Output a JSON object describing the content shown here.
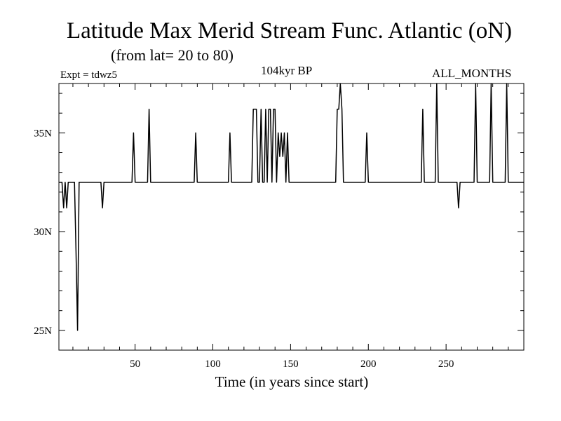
{
  "chart_data": {
    "type": "line",
    "title": "Latitude Max Merid Stream Func. Atlantic (oN)",
    "subtitle": "(from lat= 20 to 80)",
    "experiment_label": "Expt = tdwz5",
    "period_label": "104kyr BP",
    "season_label": "ALL_MONTHS",
    "xlabel": "Time (in years since start)",
    "ylabel": "",
    "xlim": [
      1,
      300
    ],
    "ylim": [
      24,
      37.5
    ],
    "x_ticks": [
      50,
      100,
      150,
      200,
      250
    ],
    "x_tick_labels": [
      "50",
      "100",
      "150",
      "200",
      "250"
    ],
    "y_ticks": [
      25,
      30,
      35
    ],
    "y_tick_labels": [
      "25N",
      "30N",
      "35N"
    ],
    "series": [
      {
        "color": "#000000",
        "x": [
          1,
          3,
          4,
          5,
          6,
          7,
          8,
          9,
          10,
          11,
          12,
          13,
          14,
          15,
          16,
          17,
          28,
          29,
          30,
          31,
          48,
          49,
          50,
          51,
          58,
          59,
          60,
          61,
          88,
          89,
          90,
          91,
          110,
          111,
          112,
          113,
          125,
          126,
          127,
          128,
          129,
          130,
          131,
          132,
          133,
          134,
          135,
          136,
          137,
          138,
          139,
          140,
          141,
          142,
          143,
          144,
          145,
          146,
          147,
          148,
          149,
          150,
          151,
          179,
          180,
          181,
          182,
          183,
          184,
          198,
          199,
          200,
          201,
          234,
          235,
          236,
          237,
          243,
          244,
          245,
          246,
          257,
          258,
          259,
          260,
          268,
          269,
          270,
          271,
          278,
          279,
          280,
          281,
          288,
          289,
          290,
          291,
          300
        ],
        "y": [
          32.5,
          32.5,
          31.2,
          32.5,
          31.2,
          32.5,
          32.5,
          32.5,
          32.5,
          32.5,
          29.0,
          25.0,
          32.5,
          32.5,
          32.5,
          32.5,
          32.5,
          31.2,
          32.5,
          32.5,
          32.5,
          35.0,
          32.5,
          32.5,
          32.5,
          36.2,
          32.5,
          32.5,
          32.5,
          35.0,
          32.5,
          32.5,
          32.5,
          35.0,
          32.5,
          32.5,
          32.5,
          36.2,
          36.2,
          36.2,
          32.5,
          32.5,
          36.2,
          32.5,
          32.5,
          36.2,
          32.5,
          36.2,
          36.2,
          32.5,
          36.2,
          36.2,
          32.5,
          35.0,
          33.8,
          35.0,
          33.8,
          35.0,
          32.5,
          35.0,
          32.5,
          32.5,
          32.5,
          32.5,
          36.2,
          36.2,
          37.5,
          36.2,
          32.5,
          32.5,
          35.0,
          32.5,
          32.5,
          32.5,
          36.2,
          32.5,
          32.5,
          32.5,
          37.5,
          32.5,
          32.5,
          32.5,
          31.2,
          32.5,
          32.5,
          32.5,
          37.5,
          32.5,
          32.5,
          32.5,
          37.5,
          32.5,
          32.5,
          32.5,
          37.5,
          32.5,
          32.5,
          32.5
        ]
      }
    ]
  }
}
